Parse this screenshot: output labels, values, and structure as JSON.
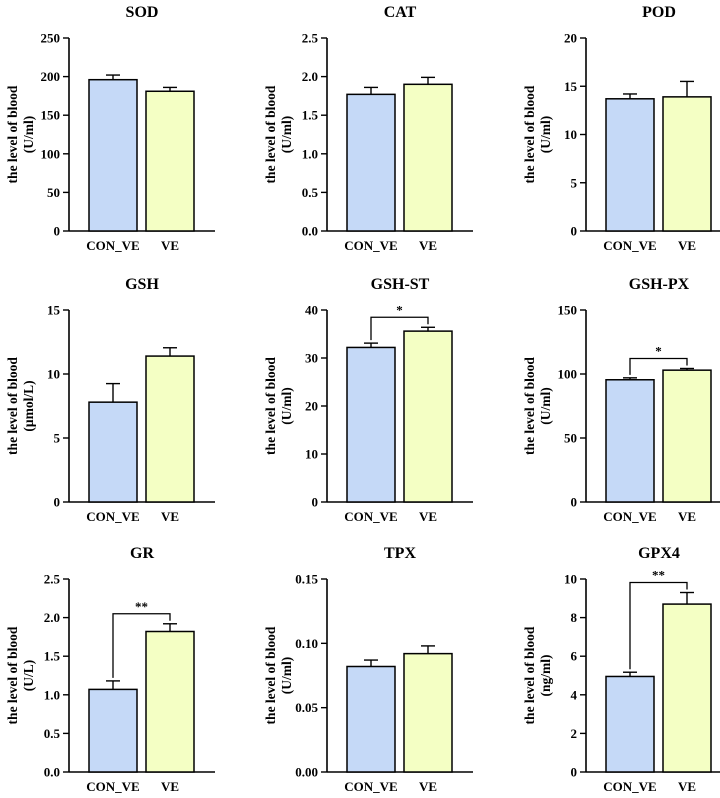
{
  "colors": {
    "con_bar": "#c5d9f7",
    "ve_bar": "#f4ffc4",
    "axis": "#000000"
  },
  "chart_data": [
    {
      "type": "bar",
      "title": "SOD",
      "ylabel": "the level of blood",
      "yunit": "(U/ml)",
      "categories": [
        "CON_VE",
        "VE"
      ],
      "values": [
        196,
        181
      ],
      "errors": [
        6,
        5
      ],
      "ylim": [
        0,
        250
      ],
      "yticks": [
        0,
        50,
        100,
        150,
        200,
        250
      ],
      "ytick_labels": [
        "0",
        "50",
        "100",
        "150",
        "200",
        "250"
      ],
      "significance": ""
    },
    {
      "type": "bar",
      "title": "CAT",
      "ylabel": "the level of blood",
      "yunit": "(U/ml)",
      "categories": [
        "CON_VE",
        "VE"
      ],
      "values": [
        1.77,
        1.9
      ],
      "errors": [
        0.09,
        0.09
      ],
      "ylim": [
        0,
        2.5
      ],
      "yticks": [
        0,
        0.5,
        1,
        1.5,
        2,
        2.5
      ],
      "ytick_labels": [
        "0.0",
        "0.5",
        "1.0",
        "1.5",
        "2.0",
        "2.5"
      ],
      "significance": ""
    },
    {
      "type": "bar",
      "title": "POD",
      "ylabel": "the level of blood",
      "yunit": "(U/ml)",
      "categories": [
        "CON_VE",
        "VE"
      ],
      "values": [
        13.7,
        13.9
      ],
      "errors": [
        0.5,
        1.6
      ],
      "ylim": [
        0,
        20
      ],
      "yticks": [
        0,
        5,
        10,
        15,
        20
      ],
      "ytick_labels": [
        "0",
        "5",
        "10",
        "15",
        "20"
      ],
      "significance": ""
    },
    {
      "type": "bar",
      "title": "GSH",
      "ylabel": "the level of blood",
      "yunit": "(μmol/L)",
      "categories": [
        "CON_VE",
        "VE"
      ],
      "values": [
        7.8,
        11.4
      ],
      "errors": [
        1.45,
        0.65
      ],
      "ylim": [
        0,
        15
      ],
      "yticks": [
        0,
        5,
        10,
        15
      ],
      "ytick_labels": [
        "0",
        "5",
        "10",
        "15"
      ],
      "significance": ""
    },
    {
      "type": "bar",
      "title": "GSH-ST",
      "ylabel": "the level of blood",
      "yunit": "(U/ml)",
      "categories": [
        "CON_VE",
        "VE"
      ],
      "values": [
        32.2,
        35.6
      ],
      "errors": [
        0.9,
        0.8
      ],
      "ylim": [
        0,
        40
      ],
      "yticks": [
        0,
        10,
        20,
        30,
        40
      ],
      "ytick_labels": [
        "0",
        "10",
        "20",
        "30",
        "40"
      ],
      "significance": "*"
    },
    {
      "type": "bar",
      "title": "GSH-PX",
      "ylabel": "the level of blood",
      "yunit": "(U/ml)",
      "categories": [
        "CON_VE",
        "VE"
      ],
      "values": [
        95.5,
        103
      ],
      "errors": [
        1.5,
        1.3
      ],
      "ylim": [
        0,
        150
      ],
      "yticks": [
        0,
        50,
        100,
        150
      ],
      "ytick_labels": [
        "0",
        "50",
        "100",
        "150"
      ],
      "significance": "*"
    },
    {
      "type": "bar",
      "title": "GR",
      "ylabel": "the level of blood",
      "yunit": "(U/L)",
      "categories": [
        "CON_VE",
        "VE"
      ],
      "values": [
        1.07,
        1.82
      ],
      "errors": [
        0.11,
        0.1
      ],
      "ylim": [
        0,
        2.5
      ],
      "yticks": [
        0,
        0.5,
        1,
        1.5,
        2,
        2.5
      ],
      "ytick_labels": [
        "0.0",
        "0.5",
        "1.0",
        "1.5",
        "2.0",
        "2.5"
      ],
      "significance": "**"
    },
    {
      "type": "bar",
      "title": "TPX",
      "ylabel": "the level of blood",
      "yunit": "(U/ml)",
      "categories": [
        "CON_VE",
        "VE"
      ],
      "values": [
        0.082,
        0.092
      ],
      "errors": [
        0.005,
        0.006
      ],
      "ylim": [
        0,
        0.15
      ],
      "yticks": [
        0,
        0.05,
        0.1,
        0.15
      ],
      "ytick_labels": [
        "0.00",
        "0.05",
        "0.10",
        "0.15"
      ],
      "significance": ""
    },
    {
      "type": "bar",
      "title": "GPX4",
      "ylabel": "the level of blood",
      "yunit": "(ng/ml)",
      "categories": [
        "CON_VE",
        "VE"
      ],
      "values": [
        4.95,
        8.7
      ],
      "errors": [
        0.22,
        0.6
      ],
      "ylim": [
        0,
        10
      ],
      "yticks": [
        0,
        2,
        4,
        6,
        8,
        10
      ],
      "ytick_labels": [
        "0",
        "2",
        "4",
        "6",
        "8",
        "10"
      ],
      "significance": "**"
    }
  ]
}
